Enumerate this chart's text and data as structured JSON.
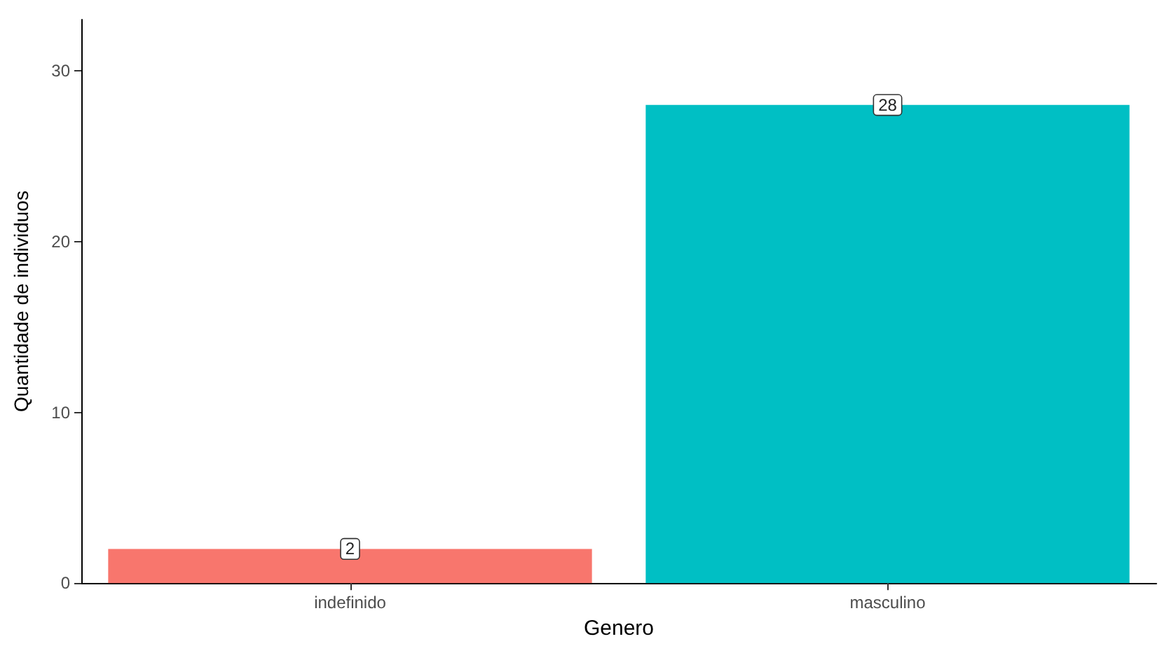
{
  "chart_data": {
    "type": "bar",
    "xlabel": "Genero",
    "ylabel": "Quantidade de individuos",
    "categories": [
      "indefinido",
      "masculino"
    ],
    "values": [
      2,
      28
    ],
    "colors": [
      "#f8766d",
      "#00bfc4"
    ],
    "ylim": [
      0,
      33
    ],
    "yticks": [
      0,
      10,
      20,
      30
    ],
    "grid": false,
    "data_labels": true
  }
}
